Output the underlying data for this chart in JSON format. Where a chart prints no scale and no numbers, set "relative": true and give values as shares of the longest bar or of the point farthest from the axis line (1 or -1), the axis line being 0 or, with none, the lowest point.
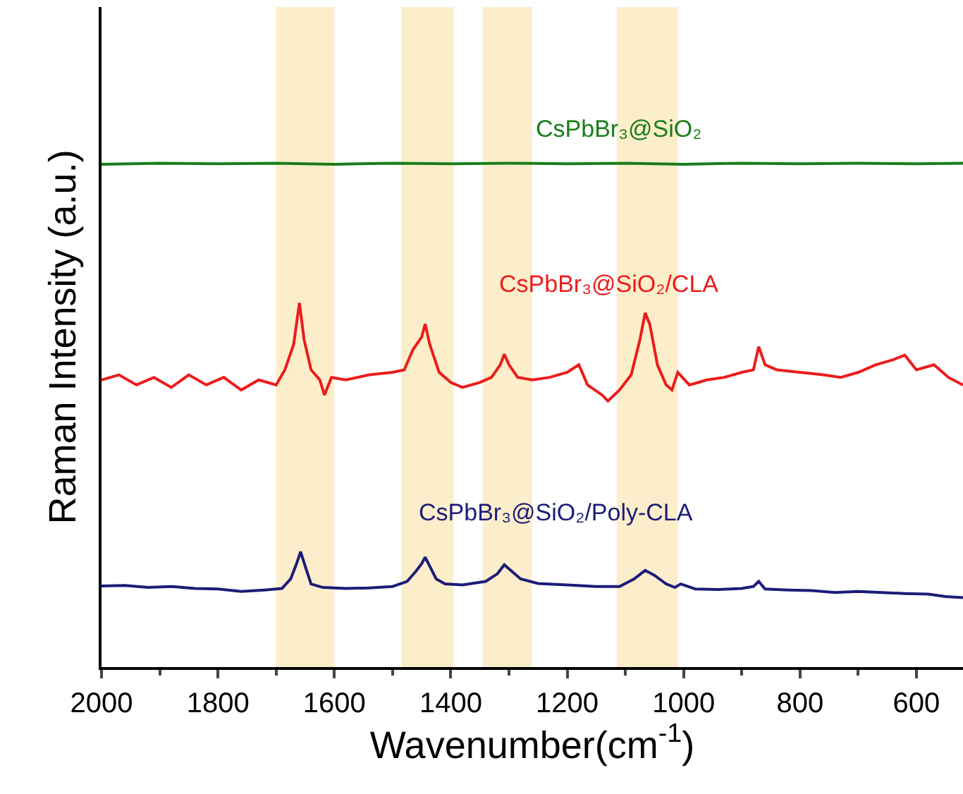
{
  "chart_data": {
    "type": "line",
    "relative": true,
    "xlabel": "Wavenumber(cm$^{-1}$)",
    "ylabel": "Raman Intensity (a.u.)",
    "xlim": [
      2000,
      520
    ],
    "xticks": [
      2000,
      1800,
      1600,
      1400,
      1200,
      1000,
      800,
      600
    ],
    "legend": false,
    "grid": false,
    "marker": "none",
    "line_style": "solid",
    "bands": [
      {
        "axis": "x",
        "from": 1700,
        "to": 1600,
        "color": "#fbe3a8"
      },
      {
        "axis": "x",
        "from": 1485,
        "to": 1395,
        "color": "#fbe3a8"
      },
      {
        "axis": "x",
        "from": 1345,
        "to": 1260,
        "color": "#fbe3a8"
      },
      {
        "axis": "x",
        "from": 1115,
        "to": 1010,
        "color": "#fbe3a8"
      }
    ],
    "series": [
      {
        "name": "CsPbBr₃@SiO₂",
        "color": "#1a7d1a",
        "x": [
          2000,
          1900,
          1800,
          1700,
          1600,
          1500,
          1400,
          1300,
          1200,
          1100,
          1000,
          900,
          800,
          700,
          600,
          520
        ],
        "values": [
          0.998,
          1.0,
          0.999,
          1.0,
          0.998,
          1.0,
          0.999,
          1.0,
          0.999,
          1.0,
          0.998,
          1.0,
          0.999,
          1.0,
          0.999,
          1.0
        ]
      },
      {
        "name": "CsPbBr₃@SiO₂/CLA",
        "color": "#ec1c1c",
        "x": [
          2000,
          1970,
          1940,
          1910,
          1880,
          1850,
          1820,
          1790,
          1760,
          1730,
          1700,
          1685,
          1670,
          1660,
          1652,
          1640,
          1625,
          1617,
          1605,
          1580,
          1540,
          1500,
          1480,
          1465,
          1450,
          1444,
          1436,
          1420,
          1400,
          1380,
          1350,
          1330,
          1315,
          1308,
          1300,
          1285,
          1260,
          1230,
          1200,
          1180,
          1165,
          1140,
          1130,
          1110,
          1090,
          1075,
          1066,
          1058,
          1045,
          1030,
          1020,
          1010,
          990,
          960,
          930,
          900,
          880,
          871,
          860,
          840,
          800,
          760,
          730,
          700,
          670,
          640,
          620,
          600,
          570,
          545,
          520
        ],
        "values": [
          0.57,
          0.58,
          0.56,
          0.575,
          0.555,
          0.58,
          0.56,
          0.575,
          0.55,
          0.57,
          0.56,
          0.59,
          0.64,
          0.723,
          0.65,
          0.59,
          0.57,
          0.54,
          0.575,
          0.57,
          0.58,
          0.585,
          0.59,
          0.63,
          0.655,
          0.681,
          0.64,
          0.585,
          0.565,
          0.555,
          0.565,
          0.575,
          0.6,
          0.621,
          0.6,
          0.575,
          0.57,
          0.575,
          0.585,
          0.6,
          0.56,
          0.54,
          0.528,
          0.55,
          0.58,
          0.65,
          0.703,
          0.68,
          0.6,
          0.56,
          0.55,
          0.585,
          0.56,
          0.57,
          0.575,
          0.585,
          0.59,
          0.636,
          0.6,
          0.59,
          0.585,
          0.58,
          0.575,
          0.585,
          0.6,
          0.61,
          0.619,
          0.59,
          0.6,
          0.575,
          0.56
        ]
      },
      {
        "name": "CsPbBr₃@SiO₂/Poly-CLA",
        "color": "#1c1c78",
        "x": [
          2000,
          1960,
          1920,
          1880,
          1840,
          1800,
          1760,
          1720,
          1690,
          1675,
          1665,
          1658,
          1650,
          1640,
          1620,
          1580,
          1540,
          1500,
          1475,
          1460,
          1450,
          1444,
          1436,
          1425,
          1410,
          1380,
          1340,
          1320,
          1308,
          1295,
          1280,
          1250,
          1200,
          1150,
          1110,
          1085,
          1066,
          1050,
          1030,
          1015,
          1005,
          980,
          940,
          900,
          880,
          871,
          860,
          820,
          780,
          740,
          700,
          660,
          620,
          580,
          550,
          520
        ],
        "values": [
          0.161,
          0.162,
          0.158,
          0.16,
          0.156,
          0.155,
          0.15,
          0.153,
          0.156,
          0.175,
          0.205,
          0.229,
          0.2,
          0.165,
          0.158,
          0.156,
          0.157,
          0.16,
          0.17,
          0.19,
          0.205,
          0.218,
          0.2,
          0.175,
          0.165,
          0.163,
          0.17,
          0.185,
          0.203,
          0.19,
          0.175,
          0.166,
          0.163,
          0.16,
          0.16,
          0.175,
          0.192,
          0.182,
          0.165,
          0.158,
          0.165,
          0.155,
          0.154,
          0.156,
          0.16,
          0.17,
          0.155,
          0.153,
          0.152,
          0.148,
          0.15,
          0.148,
          0.146,
          0.145,
          0.14,
          0.138
        ]
      }
    ]
  }
}
